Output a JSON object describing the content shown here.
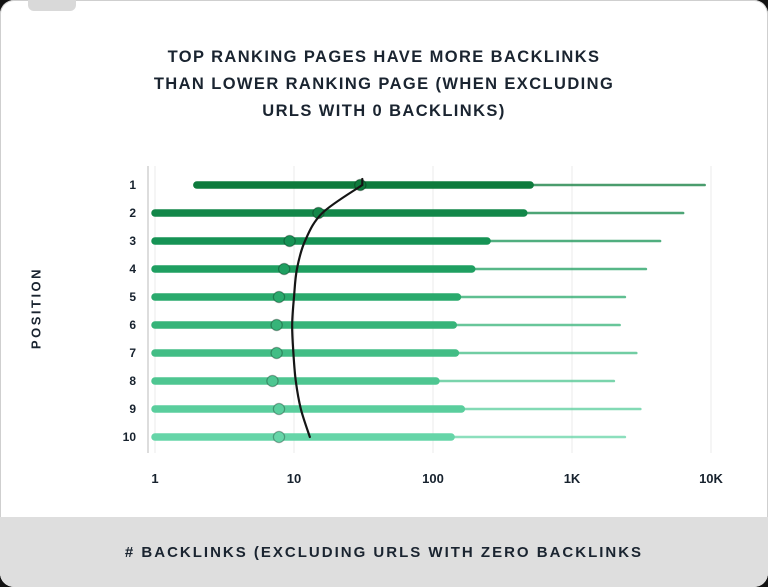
{
  "title": {
    "lines": [
      "TOP RANKING PAGES HAVE MORE BACKLINKS",
      "THAN LOWER RANKING PAGE (WHEN EXCLUDING",
      "URLS WITH 0 BACKLINKS)"
    ]
  },
  "y_axis_label": "POSITION",
  "caption": "# BACKLINKS (EXCLUDING URLS WITH ZERO BACKLINKS",
  "chart_data": {
    "type": "box",
    "orientation": "horizontal",
    "title": "TOP RANKING PAGES HAVE MORE BACKLINKS THAN LOWER RANKING PAGE (WHEN EXCLUDING URLS WITH 0 BACKLINKS)",
    "xlabel": "# BACKLINKS (EXCLUDING URLS WITH ZERO BACKLINKS",
    "ylabel": "POSITION",
    "x_scale": "log10",
    "xlim": [
      1,
      10000
    ],
    "x_ticks": [
      "1",
      "10",
      "100",
      "1K",
      "10K"
    ],
    "x_tick_values": [
      1,
      10,
      100,
      1000,
      10000
    ],
    "grid": "vertical-light",
    "rows": [
      {
        "position": "1",
        "color": "#0e7b3d",
        "whisker_lo": 2,
        "whisker_hi": 9000,
        "box_lo": 2,
        "box_hi": 500,
        "median": 30
      },
      {
        "position": "2",
        "color": "#128749",
        "whisker_lo": 1,
        "whisker_hi": 6300,
        "box_lo": 1,
        "box_hi": 450,
        "median": 15
      },
      {
        "position": "3",
        "color": "#169355",
        "whisker_lo": 1,
        "whisker_hi": 4300,
        "box_lo": 1,
        "box_hi": 245,
        "median": 9.3
      },
      {
        "position": "4",
        "color": "#1f9f61",
        "whisker_lo": 1,
        "whisker_hi": 3400,
        "box_lo": 1,
        "box_hi": 190,
        "median": 8.5
      },
      {
        "position": "5",
        "color": "#2aaa6d",
        "whisker_lo": 1,
        "whisker_hi": 2400,
        "box_lo": 1,
        "box_hi": 150,
        "median": 7.8
      },
      {
        "position": "6",
        "color": "#36b479",
        "whisker_lo": 1,
        "whisker_hi": 2200,
        "box_lo": 1,
        "box_hi": 140,
        "median": 7.5
      },
      {
        "position": "7",
        "color": "#42bd85",
        "whisker_lo": 1,
        "whisker_hi": 2900,
        "box_lo": 1,
        "box_hi": 145,
        "median": 7.5
      },
      {
        "position": "8",
        "color": "#4ec691",
        "whisker_lo": 1,
        "whisker_hi": 2000,
        "box_lo": 1,
        "box_hi": 105,
        "median": 7
      },
      {
        "position": "9",
        "color": "#5ace9d",
        "whisker_lo": 1,
        "whisker_hi": 3100,
        "box_lo": 1,
        "box_hi": 160,
        "median": 7.8
      },
      {
        "position": "10",
        "color": "#66d5a8",
        "whisker_lo": 1,
        "whisker_hi": 2400,
        "box_lo": 1,
        "box_hi": 135,
        "median": 7.8
      }
    ],
    "trend": {
      "name": "median-trend-curve",
      "color": "#151515",
      "values": [
        31,
        16,
        12,
        10.5,
        10,
        9.7,
        9.9,
        10.3,
        11.2,
        13
      ]
    },
    "axis_color": "#d2d2d2",
    "grid_color": "#ebebeb",
    "text_color": "#17222e"
  }
}
